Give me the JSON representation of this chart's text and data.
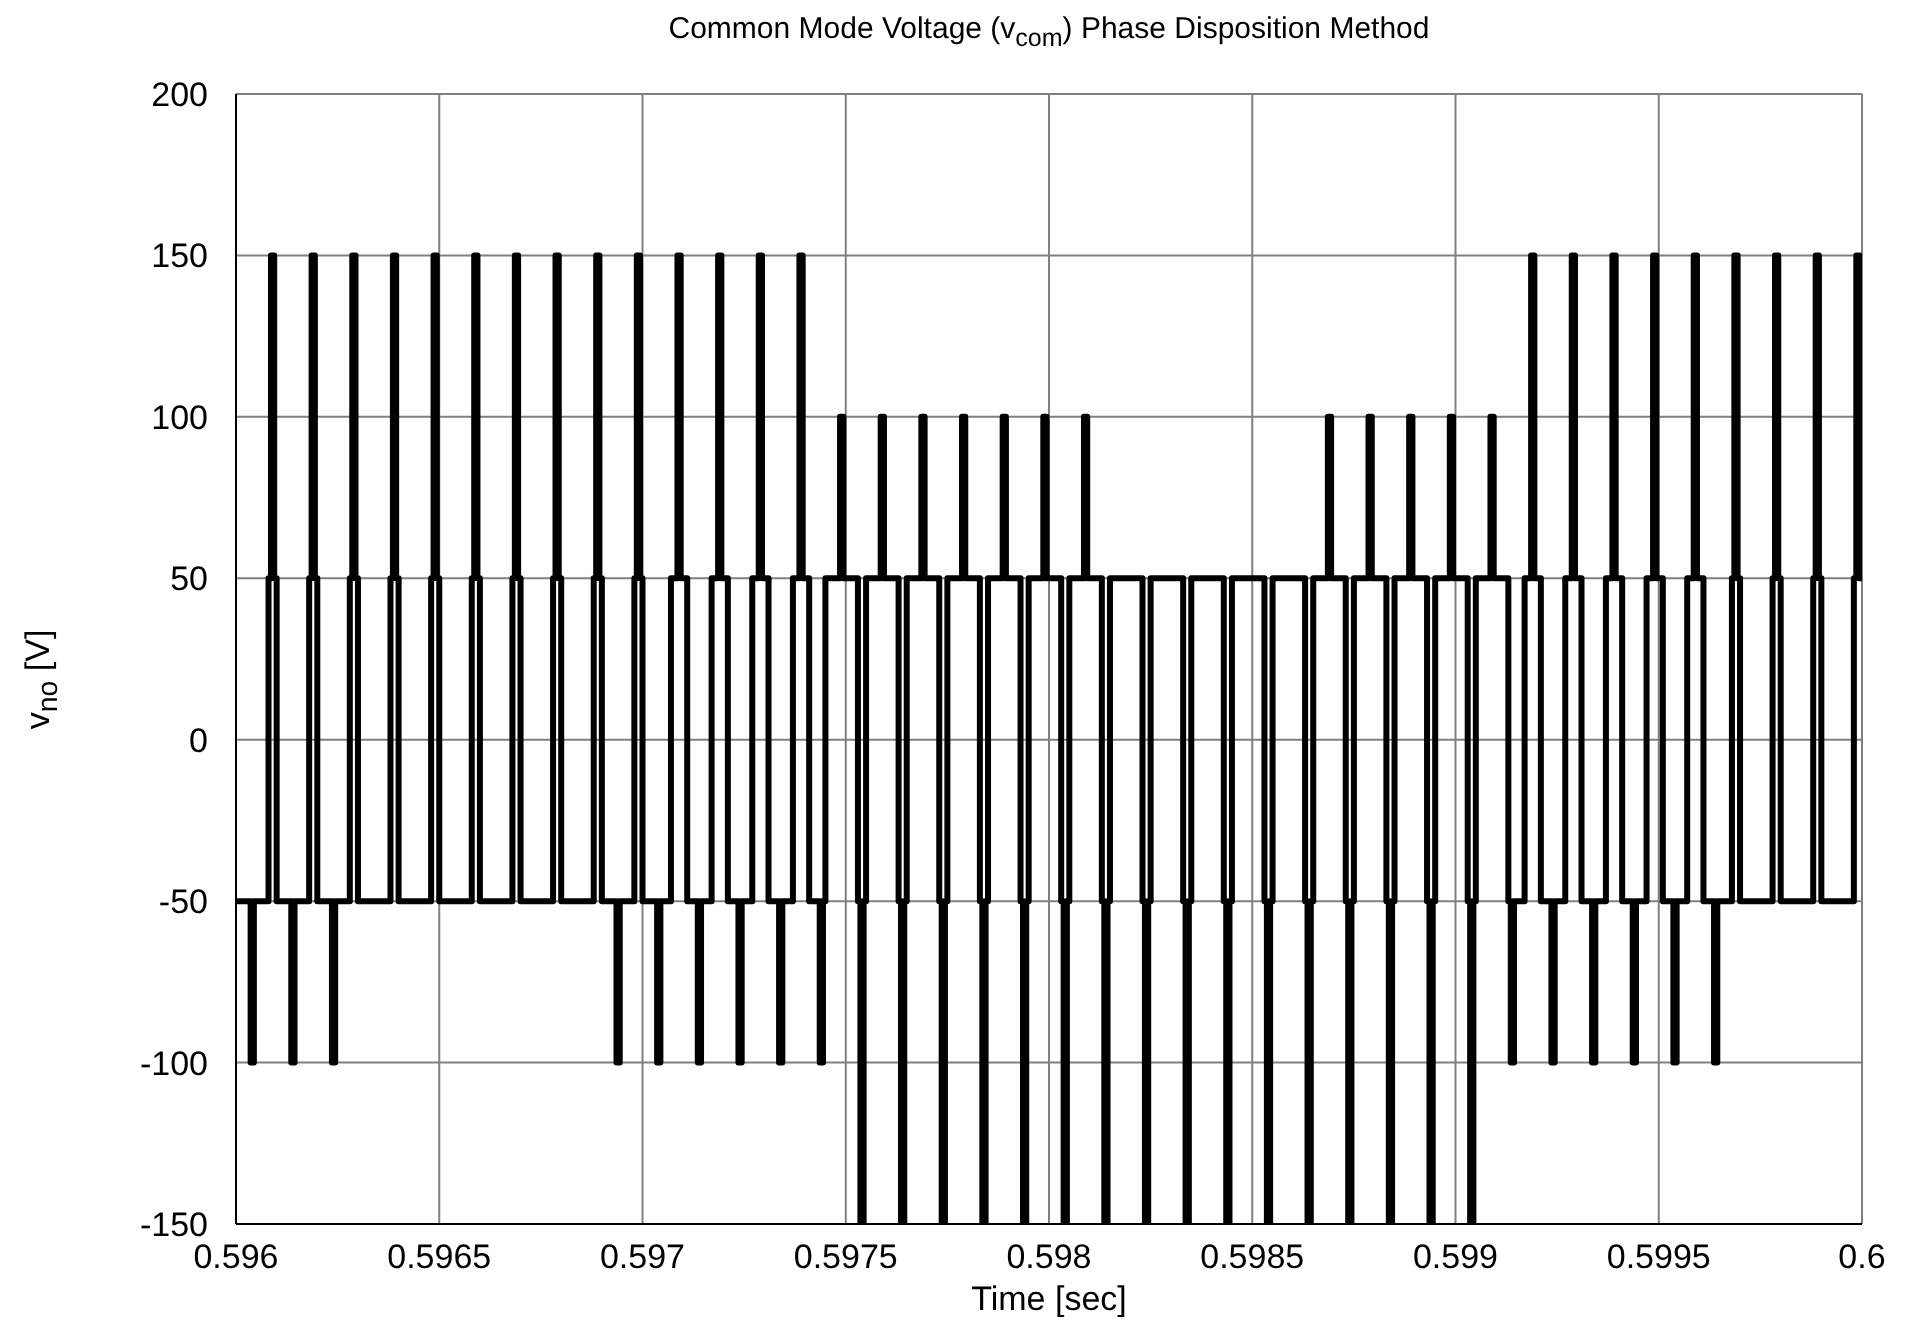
{
  "chart_data": {
    "type": "step",
    "title": "Common Mode Voltage (v$_{com}$) Phase Disposition Method",
    "xlabel": "Time  [sec]",
    "ylabel": "v$_{no}$  [V]",
    "xlim": [
      0.596,
      0.6
    ],
    "xticks": [
      0.596,
      0.5965,
      0.597,
      0.5975,
      0.598,
      0.5985,
      0.599,
      0.5995,
      0.6
    ],
    "ylim": [
      -150,
      200
    ],
    "yticks": [
      -150,
      -100,
      -50,
      0,
      50,
      100,
      150,
      200
    ],
    "grid": true,
    "series": [
      {
        "color": "#000000",
        "x": [
          0.596,
          0.596036,
          0.596044,
          0.59608,
          0.596086,
          0.596094,
          0.5961,
          0.596136,
          0.596144,
          0.59618,
          0.596186,
          0.596194,
          0.5962,
          0.596236,
          0.596244,
          0.59628,
          0.596286,
          0.596294,
          0.5963,
          0.59638,
          0.596386,
          0.596394,
          0.5964,
          0.59648,
          0.596486,
          0.596494,
          0.5965,
          0.596536,
          0.596544,
          0.59658,
          0.596586,
          0.596594,
          0.5966,
          0.59668,
          0.596686,
          0.596694,
          0.5967,
          0.59678,
          0.596786,
          0.596794,
          0.5968,
          0.59688,
          0.596886,
          0.596894,
          0.5969,
          0.596936,
          0.596944,
          0.59698,
          0.596986,
          0.596994,
          0.597,
          0.597036,
          0.597044,
          0.59707,
          0.597086,
          0.597094,
          0.59711,
          0.597136,
          0.597144,
          0.59717,
          0.597186,
          0.597194,
          0.59721,
          0.597236,
          0.597244,
          0.59727,
          0.597286,
          0.597294,
          0.59731,
          0.597336,
          0.597344,
          0.59737,
          0.597386,
          0.597394,
          0.59741,
          0.597436,
          0.597444,
          0.59745,
          0.597486,
          0.597494,
          0.59753,
          0.597536,
          0.597544,
          0.59755,
          0.597586,
          0.597594,
          0.59763,
          0.597636,
          0.597644,
          0.59765,
          0.597686,
          0.597694,
          0.59773,
          0.597736,
          0.597744,
          0.59775,
          0.597786,
          0.597794,
          0.59783,
          0.597836,
          0.597844,
          0.59785,
          0.597886,
          0.597894,
          0.59793,
          0.597936,
          0.597944,
          0.59795,
          0.597986,
          0.597994,
          0.59803,
          0.598036,
          0.598044,
          0.59805,
          0.598086,
          0.598094,
          0.59813,
          0.598136,
          0.598144,
          0.59815,
          0.59823,
          0.598236,
          0.598244,
          0.59825,
          0.59833,
          0.598336,
          0.598344,
          0.59835,
          0.59843,
          0.598436,
          0.598444,
          0.59845,
          0.59853,
          0.598536,
          0.598544,
          0.59855,
          0.59863,
          0.598636,
          0.598644,
          0.59865,
          0.598686,
          0.598694,
          0.59873,
          0.598736,
          0.598744,
          0.59875,
          0.598786,
          0.598794,
          0.59883,
          0.598836,
          0.598844,
          0.59885,
          0.598886,
          0.598894,
          0.59893,
          0.598936,
          0.598944,
          0.59895,
          0.598986,
          0.598994,
          0.59903,
          0.599036,
          0.599044,
          0.59905,
          0.599086,
          0.599094,
          0.59913,
          0.599136,
          0.599144,
          0.59917,
          0.599186,
          0.599194,
          0.59921,
          0.599236,
          0.599244,
          0.59927,
          0.599286,
          0.599294,
          0.59931,
          0.599336,
          0.599344,
          0.59937,
          0.599386,
          0.599394,
          0.59941,
          0.599436,
          0.599444,
          0.59947,
          0.599486,
          0.599494,
          0.59951,
          0.599536,
          0.599544,
          0.59957,
          0.599586,
          0.599594,
          0.59961,
          0.599636,
          0.599644,
          0.59968,
          0.599686,
          0.599694,
          0.5997,
          0.59978,
          0.599786,
          0.599794,
          0.5998,
          0.59988,
          0.599886,
          0.599894,
          0.5999,
          0.59998,
          0.599986,
          0.599994,
          0.6
        ],
        "values": [
          -50,
          -100,
          -50,
          50,
          150,
          50,
          -50,
          -100,
          -50,
          50,
          150,
          50,
          -50,
          -100,
          -50,
          50,
          150,
          50,
          -50,
          50,
          150,
          50,
          -50,
          50,
          150,
          50,
          -50,
          -50,
          -50,
          50,
          150,
          50,
          -50,
          50,
          150,
          50,
          -50,
          50,
          150,
          50,
          -50,
          50,
          150,
          50,
          -50,
          -100,
          -50,
          50,
          150,
          50,
          -50,
          -100,
          -50,
          50,
          150,
          50,
          -50,
          -100,
          -50,
          50,
          150,
          50,
          -50,
          -100,
          -50,
          50,
          150,
          50,
          -50,
          -100,
          -50,
          50,
          150,
          50,
          -50,
          -100,
          -50,
          50,
          100,
          50,
          -50,
          -150,
          -50,
          50,
          100,
          50,
          -50,
          -150,
          -50,
          50,
          100,
          50,
          -50,
          -150,
          -50,
          50,
          100,
          50,
          -50,
          -150,
          -50,
          50,
          100,
          50,
          -50,
          -150,
          -50,
          50,
          100,
          50,
          -50,
          -150,
          -50,
          50,
          100,
          50,
          -50,
          -150,
          -50,
          50,
          -50,
          -150,
          -50,
          50,
          -50,
          -150,
          -50,
          50,
          -50,
          -150,
          -50,
          50,
          -50,
          -150,
          -50,
          50,
          -50,
          -150,
          -50,
          50,
          100,
          50,
          -50,
          -150,
          -50,
          50,
          100,
          50,
          -50,
          -150,
          -50,
          50,
          100,
          50,
          -50,
          -150,
          -50,
          50,
          100,
          50,
          -50,
          -150,
          -50,
          50,
          100,
          50,
          -50,
          -100,
          -50,
          50,
          150,
          50,
          -50,
          -100,
          -50,
          50,
          150,
          50,
          -50,
          -100,
          -50,
          50,
          150,
          50,
          -50,
          -100,
          -50,
          50,
          150,
          50,
          -50,
          -100,
          -50,
          50,
          150,
          50,
          -50,
          -100,
          -50,
          50,
          150,
          50,
          -50,
          50,
          150,
          50,
          -50,
          50,
          150,
          50,
          -50,
          50,
          150,
          50,
          50
        ]
      }
    ]
  }
}
